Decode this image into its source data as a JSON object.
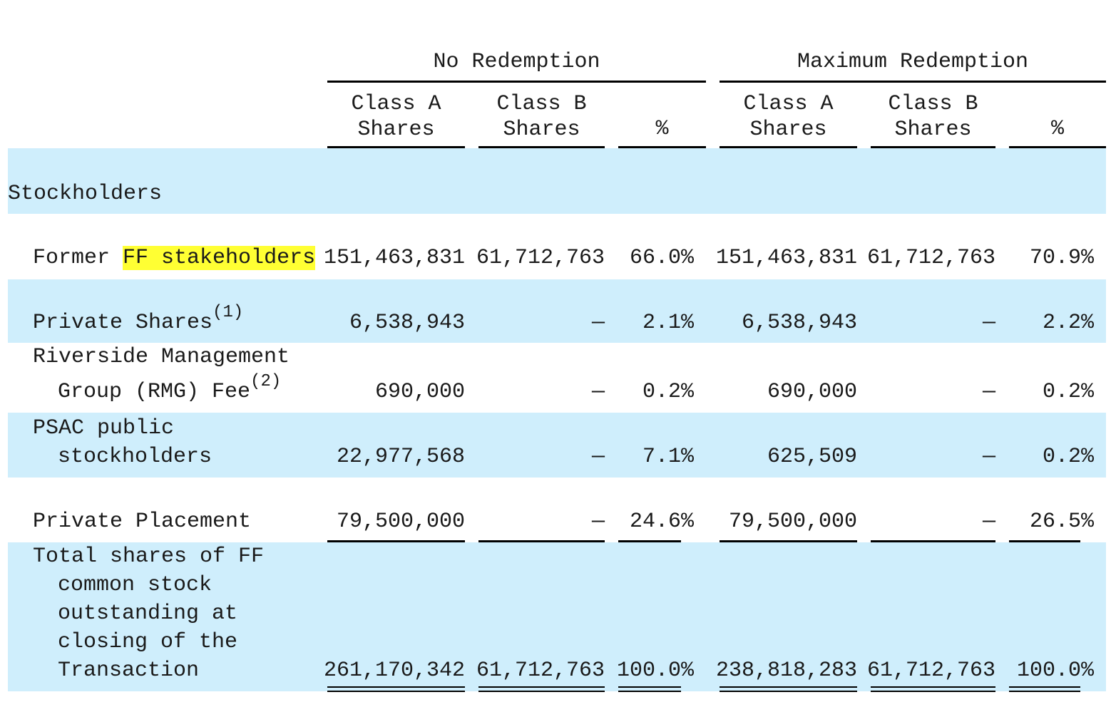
{
  "header": {
    "group_no": "No Redemption",
    "group_max": "Maximum Redemption",
    "col_a": [
      "Class A",
      "Shares"
    ],
    "col_b": [
      "Class B",
      "Shares"
    ],
    "col_pct": "%"
  },
  "section": "Stockholders",
  "rows": {
    "former": {
      "label_pre": "Former ",
      "label_hl": "FF stakeholders",
      "values": [
        "151,463,831",
        "61,712,763",
        "66.0%",
        "151,463,831",
        "61,712,763",
        "70.9%"
      ]
    },
    "private": {
      "label": "Private Shares",
      "note": "(1)",
      "values": [
        "6,538,943",
        "—",
        "2.1%",
        "6,538,943",
        "—",
        "2.2%"
      ]
    },
    "riverside": {
      "label1": "Riverside Management",
      "label2": "Group (RMG) Fee",
      "note": "(2)",
      "values": [
        "690,000",
        "—",
        "0.2%",
        "690,000",
        "—",
        "0.2%"
      ]
    },
    "psac": {
      "label1": "PSAC public",
      "label2": "stockholders",
      "values": [
        "22,977,568",
        "—",
        "7.1%",
        "625,509",
        "—",
        "0.2%"
      ]
    },
    "placement": {
      "label": "Private Placement",
      "values": [
        "79,500,000",
        "—",
        "24.6%",
        "79,500,000",
        "—",
        "26.5%"
      ]
    },
    "total": {
      "label": [
        "Total shares of FF",
        "common stock",
        "outstanding at",
        "closing of the",
        "Transaction"
      ],
      "values": [
        "261,170,342",
        "61,712,763",
        "100.0%",
        "238,818,283",
        "61,712,763",
        "100.0%"
      ]
    }
  },
  "colors": {
    "band": "#cfeefc",
    "highlight": "#ffff33"
  }
}
